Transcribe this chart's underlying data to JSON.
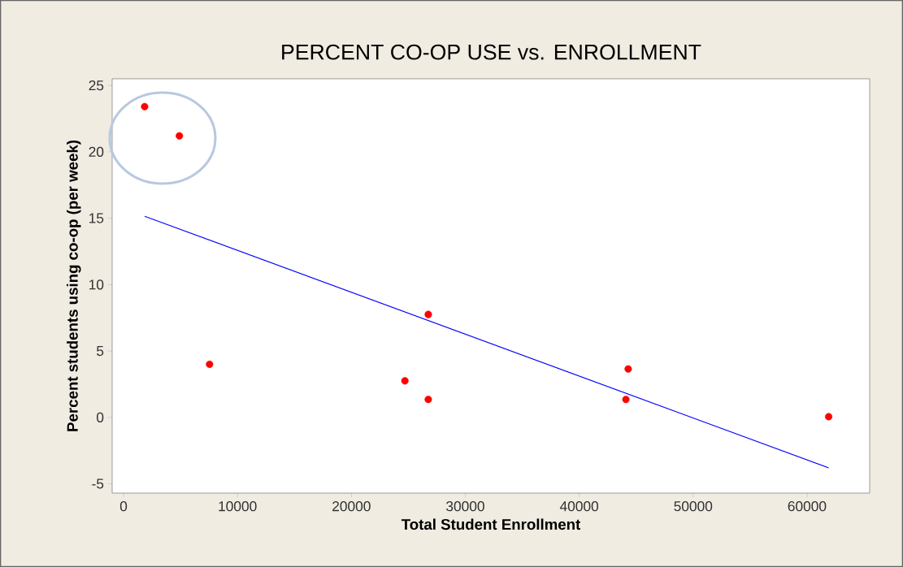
{
  "chart_data": {
    "type": "scatter",
    "title": "PERCENT CO-OP USE vs. ENROLLMENT",
    "xlabel": "Total Student Enrollment",
    "ylabel": "Percent students using co-op (per week)",
    "xlim": [
      -1000,
      65500
    ],
    "ylim": [
      -5.7,
      25.5
    ],
    "xticks": [
      0,
      10000,
      20000,
      30000,
      40000,
      50000,
      60000
    ],
    "yticks": [
      -5,
      0,
      5,
      10,
      15,
      20,
      25
    ],
    "grid": false,
    "marker": "circle",
    "series": [
      {
        "color": "#ff0000",
        "x": [
          1850,
          4900,
          7550,
          24700,
          26750,
          26750,
          44300,
          44100,
          61900
        ],
        "values": [
          23.4,
          21.2,
          4.0,
          2.75,
          7.75,
          1.35,
          3.65,
          1.35,
          0.05
        ]
      },
      {
        "type": "line",
        "color": "#0000ff",
        "marker": "none",
        "x": [
          1850,
          61900
        ],
        "values": [
          15.15,
          -3.8
        ]
      }
    ]
  }
}
